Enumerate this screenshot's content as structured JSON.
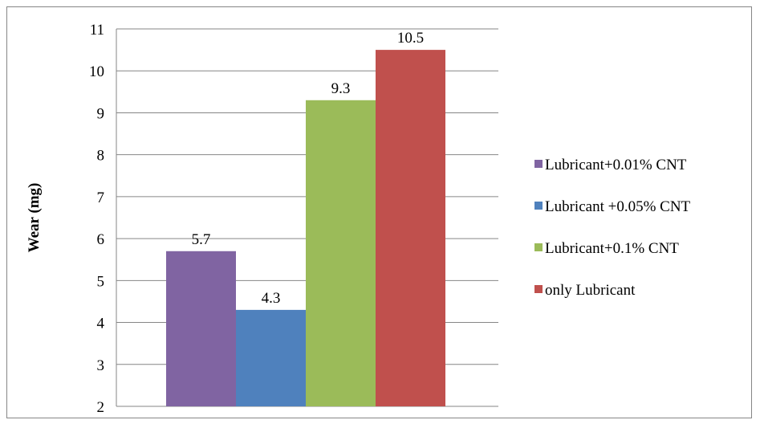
{
  "chart_data": {
    "type": "bar",
    "title": "",
    "xlabel": "",
    "ylabel": "Wear (mg)",
    "ylim": [
      2,
      11
    ],
    "yticks": [
      2,
      3,
      4,
      5,
      6,
      7,
      8,
      9,
      10,
      11
    ],
    "grid": true,
    "legend_position": "right",
    "series": [
      {
        "name": "Lubricant+0.01% CNT",
        "value": 5.7,
        "label": "5.7",
        "color": "#8064a2"
      },
      {
        "name": "Lubricant +0.05% CNT",
        "value": 4.3,
        "label": "4.3",
        "color": "#4f81bd"
      },
      {
        "name": "Lubricant+0.1% CNT",
        "value": 9.3,
        "label": "9.3",
        "color": "#9bbb59"
      },
      {
        "name": "only Lubricant",
        "value": 10.5,
        "label": "10.5",
        "color": "#c0504d"
      }
    ]
  }
}
